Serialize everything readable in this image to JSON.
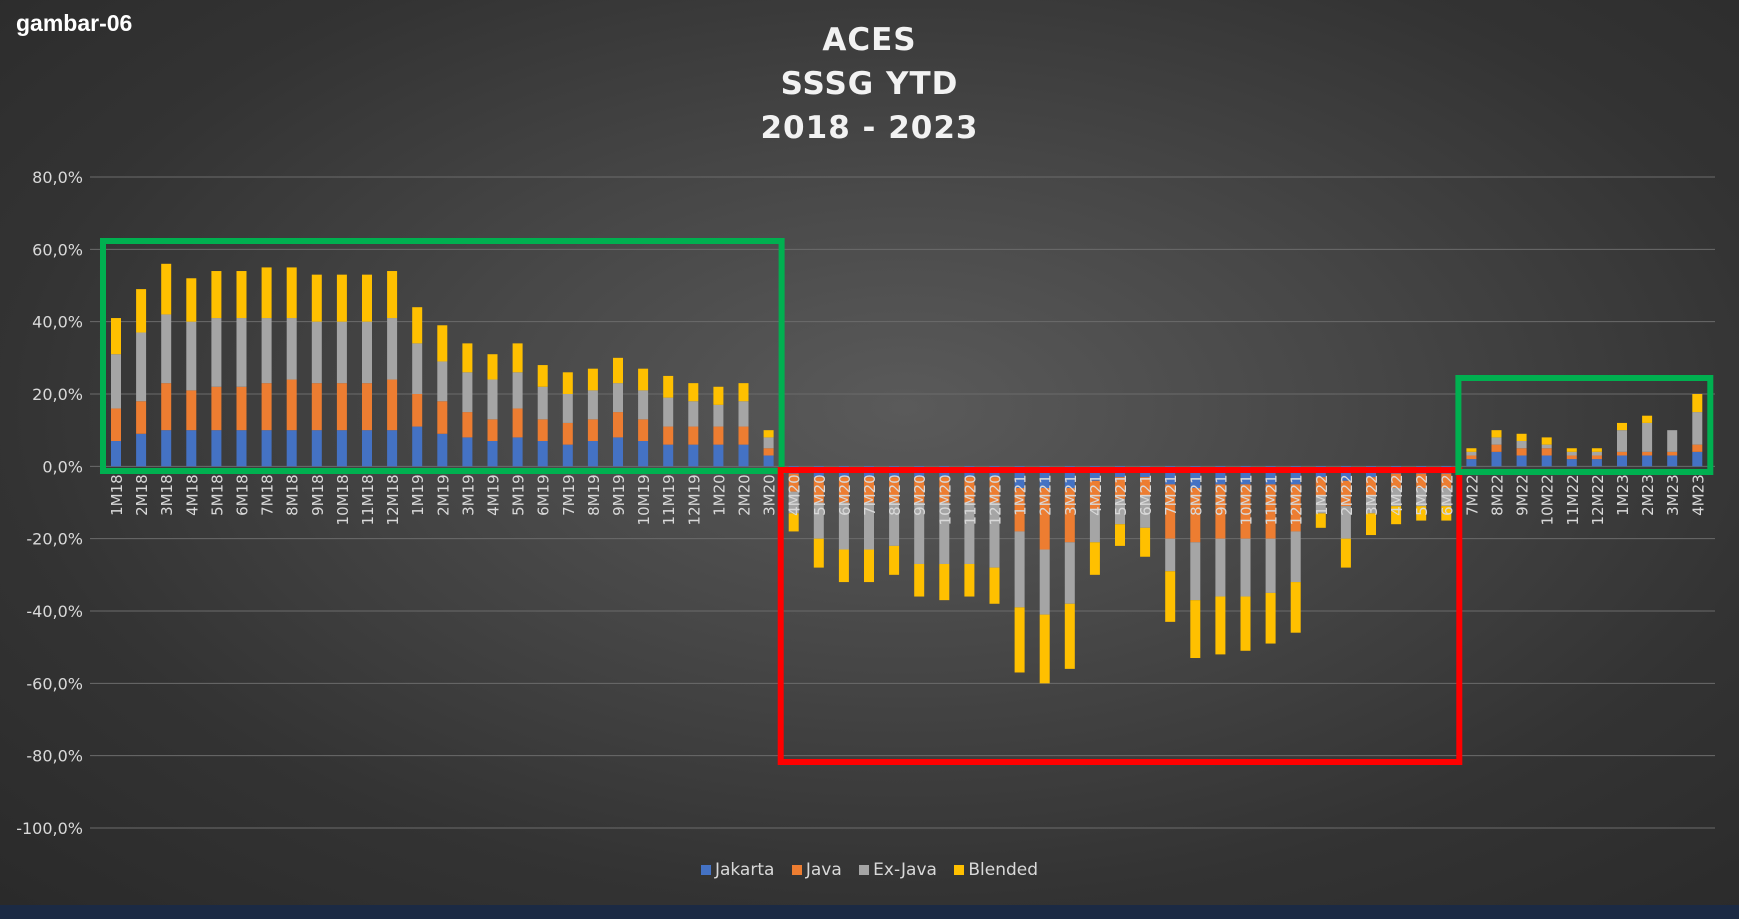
{
  "figure_tag": "gambar-06",
  "chart_data": {
    "type": "bar",
    "stacked": true,
    "title": [
      "ACES",
      "SSSG YTD",
      "2018 - 2023"
    ],
    "xlabel": "",
    "ylabel": "",
    "ylim": [
      -100,
      80
    ],
    "yticks": [
      "80,0%",
      "60,0%",
      "40,0%",
      "20,0%",
      "0,0%",
      "-20,0%",
      "-40,0%",
      "-60,0%",
      "-80,0%",
      "-100,0%"
    ],
    "grid": true,
    "legend_position": "bottom",
    "categories": [
      "1M18",
      "2M18",
      "3M18",
      "4M18",
      "5M18",
      "6M18",
      "7M18",
      "8M18",
      "9M18",
      "10M18",
      "11M18",
      "12M18",
      "1M19",
      "2M19",
      "3M19",
      "4M19",
      "5M19",
      "6M19",
      "7M19",
      "8M19",
      "9M19",
      "10M19",
      "11M19",
      "12M19",
      "1M20",
      "2M20",
      "3M20",
      "4M20",
      "5M20",
      "6M20",
      "7M20",
      "8M20",
      "9M20",
      "10M20",
      "11M20",
      "12M20",
      "1M21",
      "2M21",
      "3M21",
      "4M21",
      "5M21",
      "6M21",
      "7M21",
      "8M21",
      "9M21",
      "10M21",
      "11M21",
      "12M21",
      "1M22",
      "2M22",
      "3M22",
      "4M22",
      "5M22",
      "6M22",
      "7M22",
      "8M22",
      "9M22",
      "10M22",
      "11M22",
      "12M22",
      "1M23",
      "2M23",
      "3M23",
      "4M23"
    ],
    "series": [
      {
        "name": "Jakarta",
        "color": "#4472c4",
        "values": [
          7,
          9,
          10,
          10,
          10,
          10,
          10,
          10,
          10,
          10,
          10,
          10,
          11,
          9,
          8,
          7,
          8,
          7,
          6,
          7,
          8,
          7,
          6,
          6,
          6,
          6,
          3,
          -2,
          -3,
          -3,
          -3,
          -3,
          -3,
          -3,
          -3,
          -3,
          -6,
          -6,
          -6,
          -4,
          -3,
          -3,
          -5,
          -6,
          -5,
          -5,
          -5,
          -5,
          -3,
          -4,
          -3,
          -2,
          -2,
          -2,
          2,
          4,
          3,
          3,
          2,
          2,
          3,
          3,
          3,
          4
        ]
      },
      {
        "name": "Java",
        "color": "#ed7d31",
        "values": [
          9,
          9,
          13,
          11,
          12,
          12,
          13,
          14,
          13,
          13,
          13,
          14,
          9,
          9,
          7,
          6,
          8,
          6,
          6,
          6,
          7,
          6,
          5,
          5,
          5,
          5,
          2,
          -5,
          -7,
          -7,
          -7,
          -7,
          -7,
          -7,
          -7,
          -7,
          -12,
          -17,
          -15,
          -8,
          -6,
          -5,
          -15,
          -15,
          -15,
          -15,
          -15,
          -13,
          -5,
          -7,
          -5,
          -4,
          -4,
          -4,
          1,
          2,
          2,
          2,
          1,
          1,
          1,
          1,
          1,
          2
        ]
      },
      {
        "name": "Ex-Java",
        "color": "#a5a5a5",
        "values": [
          15,
          19,
          19,
          19,
          19,
          19,
          18,
          17,
          17,
          17,
          17,
          17,
          14,
          11,
          11,
          11,
          10,
          9,
          8,
          8,
          8,
          8,
          8,
          7,
          6,
          7,
          3,
          -6,
          -10,
          -13,
          -13,
          -12,
          -17,
          -17,
          -17,
          -18,
          -21,
          -18,
          -17,
          -9,
          -7,
          -9,
          -9,
          -16,
          -16,
          -16,
          -15,
          -14,
          -5,
          -9,
          -5,
          -5,
          -5,
          -5,
          1,
          2,
          2,
          1,
          1,
          1,
          6,
          8,
          6,
          9
        ]
      },
      {
        "name": "Blended",
        "color": "#ffc000",
        "values": [
          10,
          12,
          14,
          12,
          13,
          13,
          14,
          14,
          13,
          13,
          13,
          13,
          10,
          10,
          8,
          7,
          8,
          6,
          6,
          6,
          7,
          6,
          6,
          5,
          5,
          5,
          2,
          -5,
          -8,
          -9,
          -9,
          -8,
          -9,
          -10,
          -9,
          -10,
          -18,
          -19,
          -18,
          -9,
          -6,
          -8,
          -14,
          -16,
          -16,
          -15,
          -14,
          -14,
          -4,
          -8,
          -6,
          -5,
          -4,
          -4,
          1,
          2,
          2,
          2,
          1,
          1,
          2,
          2,
          0,
          5
        ]
      }
    ],
    "highlight_boxes": [
      {
        "color": "#00b050",
        "from": "1M18",
        "to": "3M20"
      },
      {
        "color": "#ff0000",
        "from": "4M20",
        "to": "6M22"
      },
      {
        "color": "#00b050",
        "from": "7M22",
        "to": "4M23"
      }
    ]
  }
}
